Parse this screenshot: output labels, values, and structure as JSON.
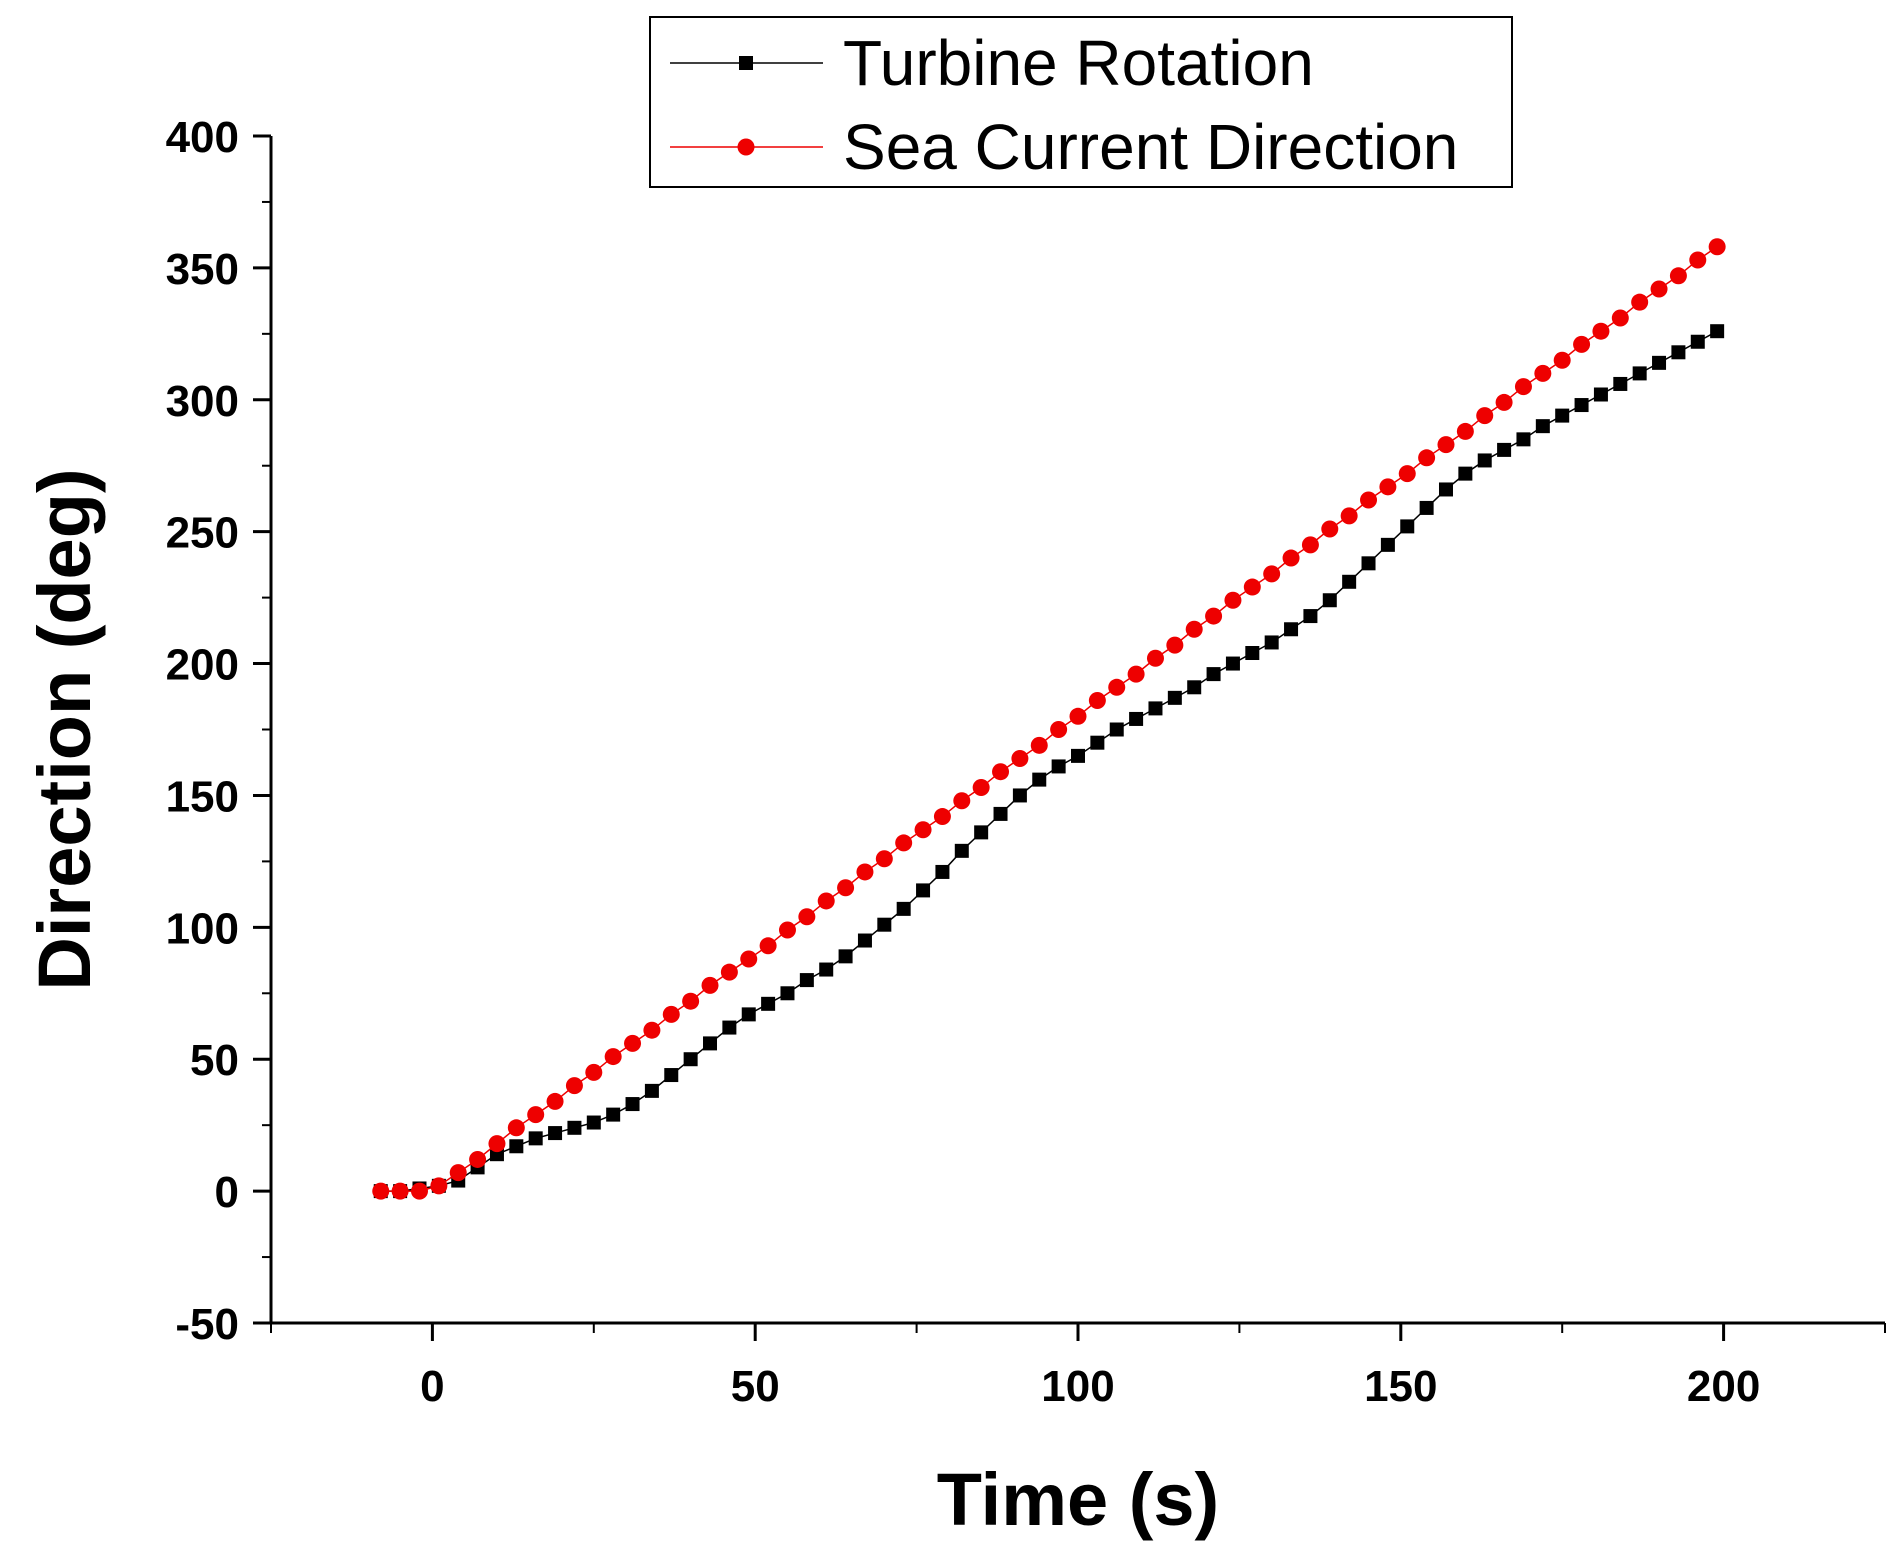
{
  "chart_data": {
    "type": "line",
    "title": "",
    "xlabel": "Time (s)",
    "ylabel": "Direction (deg)",
    "xlim": [
      -25,
      225
    ],
    "ylim": [
      -50,
      400
    ],
    "xticks": [
      0,
      50,
      100,
      150,
      200
    ],
    "yticks": [
      -50,
      0,
      50,
      100,
      150,
      200,
      250,
      300,
      350,
      400
    ],
    "grid": false,
    "legend_position": "top-center",
    "series": [
      {
        "name": "Turbine Rotation",
        "color": "#000000",
        "marker": "square",
        "x": [
          -8,
          -5,
          -2,
          1,
          4,
          7,
          10,
          13,
          16,
          19,
          22,
          25,
          28,
          31,
          34,
          37,
          40,
          43,
          46,
          49,
          52,
          55,
          58,
          61,
          64,
          67,
          70,
          73,
          76,
          79,
          82,
          85,
          88,
          91,
          94,
          97,
          100,
          103,
          106,
          109,
          112,
          115,
          118,
          121,
          124,
          127,
          130,
          133,
          136,
          139,
          142,
          145,
          148,
          151,
          154,
          157,
          160,
          163,
          166,
          169,
          172,
          175,
          178,
          181,
          184,
          187,
          190,
          193,
          196,
          199
        ],
        "y": [
          0,
          0,
          1,
          2,
          4,
          9,
          14,
          17,
          20,
          22,
          24,
          26,
          29,
          33,
          38,
          44,
          50,
          56,
          62,
          67,
          71,
          75,
          80,
          84,
          89,
          95,
          101,
          107,
          114,
          121,
          129,
          136,
          143,
          150,
          156,
          161,
          165,
          170,
          175,
          179,
          183,
          187,
          191,
          196,
          200,
          204,
          208,
          213,
          218,
          224,
          231,
          238,
          245,
          252,
          259,
          266,
          272,
          277,
          281,
          285,
          290,
          294,
          298,
          302,
          306,
          310,
          314,
          318,
          322,
          326
        ]
      },
      {
        "name": "Sea Current Direction",
        "color": "#ee0000",
        "marker": "circle",
        "x": [
          -8,
          -5,
          -2,
          1,
          4,
          7,
          10,
          13,
          16,
          19,
          22,
          25,
          28,
          31,
          34,
          37,
          40,
          43,
          46,
          49,
          52,
          55,
          58,
          61,
          64,
          67,
          70,
          73,
          76,
          79,
          82,
          85,
          88,
          91,
          94,
          97,
          100,
          103,
          106,
          109,
          112,
          115,
          118,
          121,
          124,
          127,
          130,
          133,
          136,
          139,
          142,
          145,
          148,
          151,
          154,
          157,
          160,
          163,
          166,
          169,
          172,
          175,
          178,
          181,
          184,
          187,
          190,
          193,
          196,
          199
        ],
        "y": [
          0,
          0,
          0,
          2,
          7,
          12,
          18,
          24,
          29,
          34,
          40,
          45,
          51,
          56,
          61,
          67,
          72,
          78,
          83,
          88,
          93,
          99,
          104,
          110,
          115,
          121,
          126,
          132,
          137,
          142,
          148,
          153,
          159,
          164,
          169,
          175,
          180,
          186,
          191,
          196,
          202,
          207,
          213,
          218,
          224,
          229,
          234,
          240,
          245,
          251,
          256,
          262,
          267,
          272,
          278,
          283,
          288,
          294,
          299,
          305,
          310,
          315,
          321,
          326,
          331,
          337,
          342,
          347,
          353,
          358
        ]
      }
    ]
  }
}
